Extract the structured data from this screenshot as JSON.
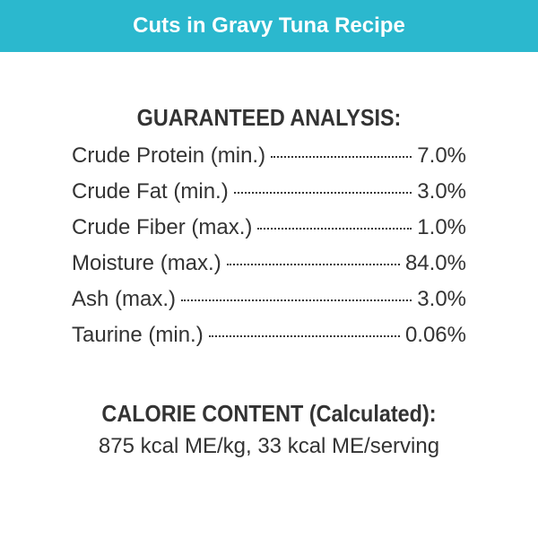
{
  "header": {
    "title": "Cuts in Gravy Tuna Recipe"
  },
  "analysis": {
    "title": "GUARANTEED ANALYSIS:",
    "rows": [
      {
        "label": "Crude Protein (min.)",
        "value": "7.0%"
      },
      {
        "label": "Crude Fat (min.)",
        "value": "3.0%"
      },
      {
        "label": "Crude Fiber (max.)",
        "value": "1.0%"
      },
      {
        "label": "Moisture (max.)",
        "value": "84.0%"
      },
      {
        "label": "Ash (max.)",
        "value": "3.0%"
      },
      {
        "label": "Taurine (min.)",
        "value": "0.06%"
      }
    ]
  },
  "calorie": {
    "title": "CALORIE CONTENT (Calculated):",
    "text": "875 kcal ME/kg, 33 kcal ME/serving"
  }
}
